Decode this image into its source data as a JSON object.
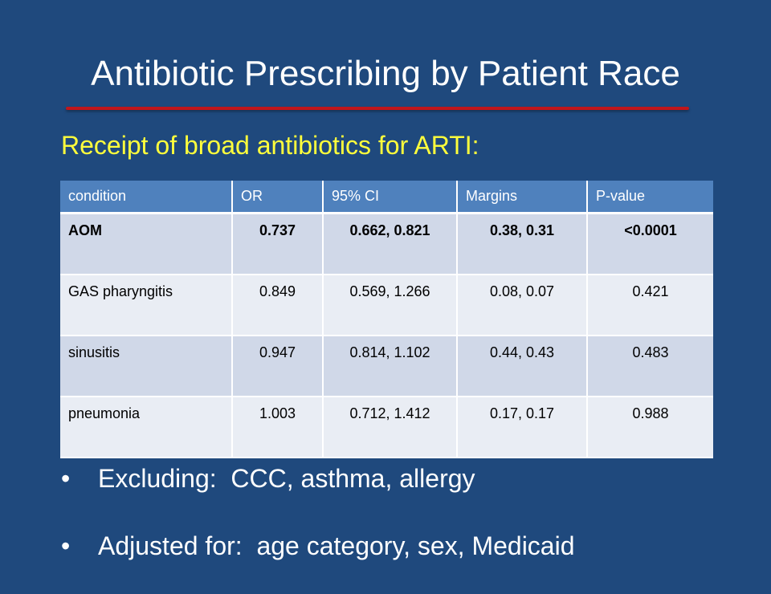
{
  "slide": {
    "title": "Antibiotic Prescribing by Patient Race",
    "subtitle": "Receipt of broad antibiotics for ARTI:"
  },
  "table": {
    "headers": [
      "condition",
      "OR",
      "95% CI",
      "Margins",
      "P-value"
    ],
    "rows": [
      {
        "cells": [
          "AOM",
          "0.737",
          "0.662, 0.821",
          "0.38, 0.31",
          "<0.0001"
        ],
        "bold": true
      },
      {
        "cells": [
          "GAS pharyngitis",
          "0.849",
          "0.569, 1.266",
          "0.08, 0.07",
          "0.421"
        ],
        "bold": false
      },
      {
        "cells": [
          "sinusitis",
          "0.947",
          "0.814, 1.102",
          "0.44, 0.43",
          "0.483"
        ],
        "bold": false
      },
      {
        "cells": [
          "pneumonia",
          "1.003",
          "0.712, 1.412",
          "0.17, 0.17",
          "0.988"
        ],
        "bold": false
      }
    ]
  },
  "bullets": [
    "Excluding:  CCC, asthma, allergy",
    "Adjusted for:  age category, sex, Medicaid"
  ],
  "colors": {
    "background": "#1f497d",
    "title_rule": "#c0161b",
    "subtitle": "#ffff3c",
    "header_fill": "#4f81bd",
    "row_odd": "#d0d8e8",
    "row_even": "#e9edf4"
  }
}
